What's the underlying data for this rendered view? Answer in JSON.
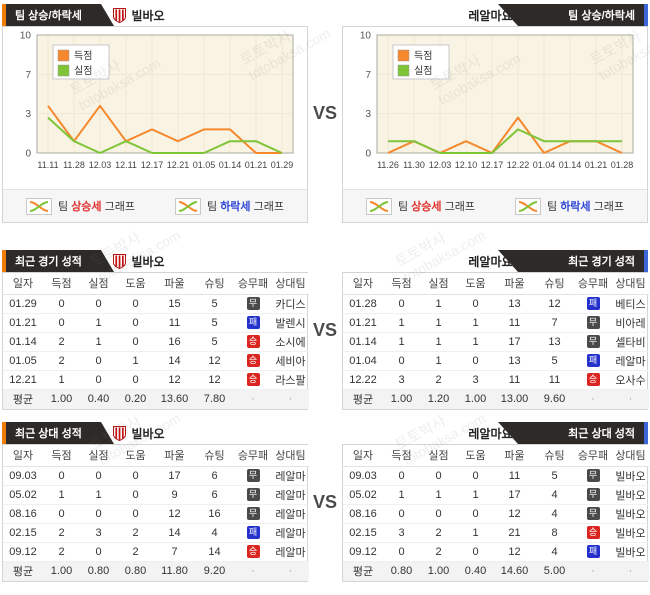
{
  "page": {
    "vs": "VS",
    "watermark_1": "토토박사",
    "watermark_2": "totobaksa.com"
  },
  "teams": {
    "home": {
      "name": "빌바오"
    },
    "away": {
      "name": "레알마요르카"
    }
  },
  "sections": {
    "trend": {
      "tab": "팀 상승/하락세",
      "links": {
        "word_team": "팀",
        "rise": "상승세",
        "fall": "하락세",
        "word_graph": "그래프"
      }
    },
    "recent": {
      "tab": "최근 경기 성적"
    },
    "h2h": {
      "tab": "최근 상대 성적"
    }
  },
  "chart_data": [
    {
      "type": "line",
      "team": "빌바오",
      "title": "팀 상승/하락세 (빌바오)",
      "x": [
        "11.11",
        "11.28",
        "12.03",
        "12.11",
        "12.17",
        "12.21",
        "01.05",
        "01.14",
        "01.21",
        "01.29"
      ],
      "series": [
        {
          "name": "득점",
          "color": "#f6882d",
          "values": [
            4,
            1,
            4,
            1,
            2,
            1,
            2,
            2,
            0,
            0
          ]
        },
        {
          "name": "실점",
          "color": "#7fc437",
          "values": [
            3,
            1,
            0,
            1,
            0,
            0,
            0,
            1,
            1,
            0
          ]
        }
      ],
      "ylim": [
        0,
        10
      ],
      "yticks": [
        0,
        3,
        7,
        10
      ],
      "grid": true,
      "legend_position": "top-left"
    },
    {
      "type": "line",
      "team": "레알마요르카",
      "title": "팀 상승/하락세 (레알마요르카)",
      "x": [
        "11.26",
        "11.30",
        "12.03",
        "12.10",
        "12.17",
        "12.22",
        "01.04",
        "01.14",
        "01.21",
        "01.28"
      ],
      "series": [
        {
          "name": "득점",
          "color": "#f6882d",
          "values": [
            0,
            1,
            0,
            1,
            0,
            3,
            0,
            1,
            1,
            0
          ]
        },
        {
          "name": "실점",
          "color": "#7fc437",
          "values": [
            1,
            1,
            0,
            0,
            0,
            2,
            1,
            1,
            1,
            1
          ]
        }
      ],
      "ylim": [
        0,
        10
      ],
      "yticks": [
        0,
        3,
        7,
        10
      ],
      "grid": true,
      "legend_position": "top-left"
    }
  ],
  "tables": {
    "columns": [
      "일자",
      "득점",
      "실점",
      "도움",
      "파울",
      "슈팅",
      "승무패",
      "상대팀"
    ],
    "avg_label": "평균",
    "recent_home": {
      "rows": [
        {
          "date": "01.29",
          "scored": "0",
          "conceded": "0",
          "assists": "0",
          "fouls": "15",
          "shots": "5",
          "result": "무",
          "opponent": "카디스"
        },
        {
          "date": "01.21",
          "scored": "0",
          "conceded": "1",
          "assists": "0",
          "fouls": "11",
          "shots": "5",
          "result": "패",
          "opponent": "발렌시"
        },
        {
          "date": "01.14",
          "scored": "2",
          "conceded": "1",
          "assists": "0",
          "fouls": "16",
          "shots": "5",
          "result": "승",
          "opponent": "소시에"
        },
        {
          "date": "01.05",
          "scored": "2",
          "conceded": "0",
          "assists": "1",
          "fouls": "14",
          "shots": "12",
          "result": "승",
          "opponent": "세비아"
        },
        {
          "date": "12.21",
          "scored": "1",
          "conceded": "0",
          "assists": "0",
          "fouls": "12",
          "shots": "12",
          "result": "승",
          "opponent": "라스팔"
        }
      ],
      "avg": {
        "scored": "1.00",
        "conceded": "0.40",
        "assists": "0.20",
        "fouls": "13.60",
        "shots": "7.80"
      }
    },
    "recent_away": {
      "rows": [
        {
          "date": "01.28",
          "scored": "0",
          "conceded": "1",
          "assists": "0",
          "fouls": "13",
          "shots": "12",
          "result": "패",
          "opponent": "베티스"
        },
        {
          "date": "01.21",
          "scored": "1",
          "conceded": "1",
          "assists": "1",
          "fouls": "11",
          "shots": "7",
          "result": "무",
          "opponent": "비아레"
        },
        {
          "date": "01.14",
          "scored": "1",
          "conceded": "1",
          "assists": "1",
          "fouls": "17",
          "shots": "13",
          "result": "무",
          "opponent": "셀타비"
        },
        {
          "date": "01.04",
          "scored": "0",
          "conceded": "1",
          "assists": "0",
          "fouls": "13",
          "shots": "5",
          "result": "패",
          "opponent": "레알마"
        },
        {
          "date": "12.22",
          "scored": "3",
          "conceded": "2",
          "assists": "3",
          "fouls": "11",
          "shots": "11",
          "result": "승",
          "opponent": "오사수"
        }
      ],
      "avg": {
        "scored": "1.00",
        "conceded": "1.20",
        "assists": "1.00",
        "fouls": "13.00",
        "shots": "9.60"
      }
    },
    "h2h_home": {
      "rows": [
        {
          "date": "09.03",
          "scored": "0",
          "conceded": "0",
          "assists": "0",
          "fouls": "17",
          "shots": "6",
          "result": "무",
          "opponent": "레알마"
        },
        {
          "date": "05.02",
          "scored": "1",
          "conceded": "1",
          "assists": "0",
          "fouls": "9",
          "shots": "6",
          "result": "무",
          "opponent": "레알마"
        },
        {
          "date": "08.16",
          "scored": "0",
          "conceded": "0",
          "assists": "0",
          "fouls": "12",
          "shots": "16",
          "result": "무",
          "opponent": "레알마"
        },
        {
          "date": "02.15",
          "scored": "2",
          "conceded": "3",
          "assists": "2",
          "fouls": "14",
          "shots": "4",
          "result": "패",
          "opponent": "레알마"
        },
        {
          "date": "09.12",
          "scored": "2",
          "conceded": "0",
          "assists": "2",
          "fouls": "7",
          "shots": "14",
          "result": "승",
          "opponent": "레알마"
        }
      ],
      "avg": {
        "scored": "1.00",
        "conceded": "0.80",
        "assists": "0.80",
        "fouls": "11.80",
        "shots": "9.20"
      }
    },
    "h2h_away": {
      "rows": [
        {
          "date": "09.03",
          "scored": "0",
          "conceded": "0",
          "assists": "0",
          "fouls": "11",
          "shots": "5",
          "result": "무",
          "opponent": "빌바오"
        },
        {
          "date": "05.02",
          "scored": "1",
          "conceded": "1",
          "assists": "1",
          "fouls": "17",
          "shots": "4",
          "result": "무",
          "opponent": "빌바오"
        },
        {
          "date": "08.16",
          "scored": "0",
          "conceded": "0",
          "assists": "0",
          "fouls": "12",
          "shots": "4",
          "result": "무",
          "opponent": "빌바오"
        },
        {
          "date": "02.15",
          "scored": "3",
          "conceded": "2",
          "assists": "1",
          "fouls": "21",
          "shots": "8",
          "result": "승",
          "opponent": "빌바오"
        },
        {
          "date": "09.12",
          "scored": "0",
          "conceded": "2",
          "assists": "0",
          "fouls": "12",
          "shots": "4",
          "result": "패",
          "opponent": "빌바오"
        }
      ],
      "avg": {
        "scored": "0.80",
        "conceded": "1.00",
        "assists": "0.40",
        "fouls": "14.60",
        "shots": "5.00"
      }
    }
  },
  "colors": {
    "accent_orange": "#f07d0a",
    "accent_blue": "#3d66d8",
    "tab_black": "#2d2a27",
    "scored_line": "#f6882d",
    "conceded_line": "#7fc437",
    "win": "#da2520",
    "draw": "#4a4a4a",
    "loss": "#2531cb",
    "rise_text": "#e0312e",
    "fall_text": "#2d45d6",
    "plot_bg": "#f8f3e3"
  }
}
